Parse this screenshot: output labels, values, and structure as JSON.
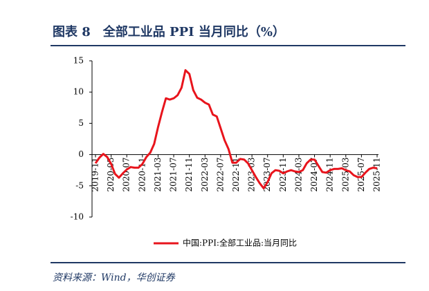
{
  "chart_data": {
    "type": "line",
    "title": "图表 8　全部工业品 PPI 当月同比（%）",
    "source": "资料来源：Wind，华创证券",
    "categories": [
      "2019-11",
      null,
      null,
      null,
      "2020-03",
      null,
      null,
      null,
      "2020-07",
      null,
      null,
      null,
      "2020-11",
      null,
      null,
      null,
      "2021-03",
      null,
      null,
      null,
      "2021-07",
      null,
      null,
      null,
      "2021-11",
      null,
      null,
      null,
      "2022-03",
      null,
      null,
      null,
      "2022-07",
      null,
      null,
      null,
      "2022-11",
      null,
      null,
      null,
      "2023-03",
      null,
      null,
      null,
      "2023-07",
      null,
      null,
      null,
      "2023-11",
      null,
      null,
      null,
      "2024-03",
      null,
      null,
      null,
      "2024-07",
      null,
      null,
      null,
      "2024-11",
      null,
      null,
      null,
      "2025-03",
      null,
      null,
      null,
      "2025-07",
      null,
      null,
      null,
      "2025-11"
    ],
    "series": [
      {
        "name": "中国:PPI:全部工业品:当月同比",
        "color": "#e8141c",
        "values": [
          -1.4,
          -0.5,
          0.1,
          -0.4,
          -1.5,
          -3.1,
          -3.7,
          -3.0,
          -2.4,
          -2.0,
          -2.1,
          -2.1,
          -1.5,
          -0.4,
          0.3,
          1.7,
          4.4,
          6.8,
          9.0,
          8.8,
          9.0,
          9.5,
          10.7,
          13.5,
          12.9,
          10.3,
          9.1,
          8.8,
          8.3,
          8.0,
          6.4,
          6.1,
          4.2,
          2.3,
          0.9,
          -1.3,
          -1.3,
          -0.7,
          -0.8,
          -1.4,
          -2.5,
          -3.6,
          -4.6,
          -5.4,
          -4.4,
          -3.0,
          -2.5,
          -2.6,
          -3.0,
          -2.7,
          -2.5,
          -2.7,
          -2.8,
          -2.5,
          -1.4,
          -0.8,
          -0.8,
          -1.8,
          -2.8,
          -2.9,
          -2.5,
          -2.3,
          -2.3,
          -2.2,
          -2.5,
          -2.7,
          -3.3,
          -3.6,
          -3.6,
          -2.9,
          -2.3,
          -2.1,
          -2.2
        ]
      }
    ],
    "ylim": [
      -10,
      15
    ],
    "yticks": [
      -10,
      -5,
      0,
      5,
      10,
      15
    ]
  }
}
